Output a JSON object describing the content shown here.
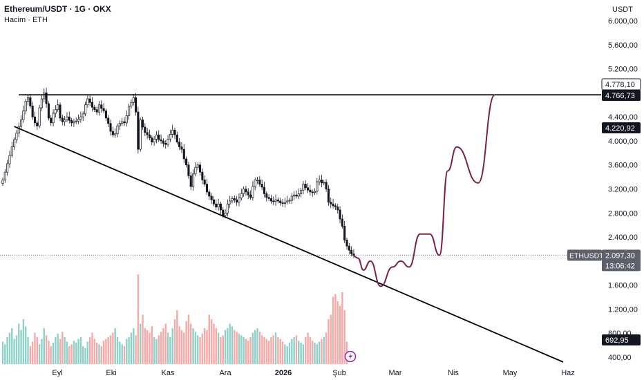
{
  "header": {
    "symbol_title": "Ethereum/USDT · 1G · OKX",
    "volume_label": "Hacim · ETH",
    "currency": "USDT"
  },
  "chart_data": {
    "type": "candlestick",
    "title": "Ethereum/USDT · 1G · OKX",
    "price_axis": {
      "ticks": [
        6000,
        5600,
        5200,
        4400,
        4000,
        3600,
        3200,
        2800,
        2400,
        1600,
        1200,
        800,
        400
      ],
      "tick_labels": [
        "6.000,00",
        "5.600,00",
        "5.200,00",
        "4.400,00",
        "4.000,00",
        "3.600,00",
        "3.200,00",
        "2.800,00",
        "2.400,00",
        "1.600,00",
        "1.200,00",
        "800,00",
        "400,00"
      ],
      "badges": [
        {
          "value": 4778.1,
          "label": "4.778,10",
          "style": "outline"
        },
        {
          "value": 4766.73,
          "label": "4.766,73",
          "style": "dark"
        },
        {
          "value": 4220.92,
          "label": "4.220,92",
          "style": "dark"
        },
        {
          "value": 2097.3,
          "label": "2.097,30",
          "style": "gray",
          "symbol": "ETHUSDT",
          "countdown": "13:06:42"
        },
        {
          "label": "692,95",
          "style": "dark",
          "pane": "volume"
        }
      ]
    },
    "time_axis": {
      "labels": [
        "Eyl",
        "Eki",
        "Kas",
        "Ara",
        "2026",
        "Şub",
        "Mar",
        "Nis",
        "May",
        "Haz"
      ],
      "bold": "2026"
    },
    "series_closes": [
      3350,
      3480,
      3620,
      3760,
      3900,
      4020,
      4130,
      4240,
      4350,
      4500,
      4660,
      4720,
      4580,
      4400,
      4300,
      4250,
      4550,
      4700,
      4800,
      4620,
      4380,
      4300,
      4460,
      4520,
      4600,
      4380,
      4320,
      4350,
      4400,
      4340,
      4300,
      4320,
      4330,
      4360,
      4400,
      4450,
      4600,
      4700,
      4640,
      4560,
      4520,
      4480,
      4600,
      4540,
      4500,
      4380,
      4290,
      4160,
      4100,
      4120,
      4250,
      4290,
      4320,
      4300,
      4420,
      4580,
      4640,
      4720,
      4480,
      3860,
      4350,
      4230,
      4140,
      4100,
      4050,
      3980,
      4030,
      4100,
      4020,
      4000,
      3960,
      3940,
      4030,
      4110,
      4180,
      4100,
      3980,
      3900,
      3860,
      3700,
      3600,
      3420,
      3240,
      3450,
      3560,
      3600,
      3480,
      3350,
      3280,
      3150,
      3080,
      3020,
      2950,
      2900,
      2950,
      2850,
      2760,
      2800,
      2950,
      3000,
      3040,
      3020,
      2980,
      3050,
      3120,
      3200,
      3150,
      3100,
      3060,
      3240,
      3350,
      3350,
      3280,
      3230,
      3120,
      3060,
      3040,
      3000,
      2990,
      3020,
      3000,
      2970,
      2960,
      2980,
      3000,
      3010,
      3080,
      3100,
      3080,
      3120,
      3180,
      3280,
      3220,
      3180,
      3150,
      3140,
      3160,
      3320,
      3350,
      3300,
      3310,
      3200,
      2980,
      2950,
      2920,
      2900,
      2850,
      2700,
      2580,
      2350,
      2250,
      2180,
      2120,
      2097
    ],
    "volume_heights": [
      0.25,
      0.22,
      0.3,
      0.35,
      0.4,
      0.28,
      0.32,
      0.45,
      0.38,
      0.5,
      0.42,
      0.3,
      0.2,
      0.25,
      0.35,
      0.3,
      0.22,
      0.28,
      0.4,
      0.32,
      0.26,
      0.2,
      0.24,
      0.3,
      0.34,
      0.28,
      0.36,
      0.3,
      0.25,
      0.2,
      0.22,
      0.26,
      0.24,
      0.28,
      0.3,
      0.2,
      0.18,
      0.25,
      0.3,
      0.35,
      0.28,
      0.24,
      0.22,
      0.2,
      0.26,
      0.28,
      0.3,
      0.32,
      0.35,
      0.4,
      0.3,
      0.25,
      0.22,
      0.2,
      0.28,
      0.3,
      0.35,
      0.4,
      0.32,
      1.0,
      0.45,
      0.55,
      0.4,
      0.38,
      0.35,
      0.42,
      0.3,
      0.28,
      0.32,
      0.36,
      0.4,
      0.45,
      0.35,
      0.3,
      0.4,
      0.5,
      0.6,
      0.42,
      0.38,
      0.35,
      0.48,
      0.55,
      0.45,
      0.4,
      0.36,
      0.32,
      0.3,
      0.34,
      0.4,
      0.38,
      0.55,
      0.5,
      0.45,
      0.4,
      0.35,
      0.3,
      0.32,
      0.38,
      0.4,
      0.45,
      0.42,
      0.38,
      0.36,
      0.34,
      0.32,
      0.3,
      0.28,
      0.26,
      0.3,
      0.35,
      0.38,
      0.4,
      0.36,
      0.32,
      0.3,
      0.28,
      0.26,
      0.3,
      0.32,
      0.35,
      0.3,
      0.28,
      0.25,
      0.22,
      0.2,
      0.24,
      0.28,
      0.3,
      0.32,
      0.26,
      0.24,
      0.22,
      0.3,
      0.35,
      0.3,
      0.26,
      0.24,
      0.22,
      0.25,
      0.28,
      0.3,
      0.35,
      0.5,
      0.55,
      0.75,
      0.78,
      0.7,
      0.65,
      0.8,
      0.6,
      0.25
    ],
    "trendlines": [
      {
        "name": "resistance",
        "from": {
          "time_index": 7,
          "price": 4766.73
        },
        "to": {
          "time_index": "right-edge",
          "price": 4766.73
        }
      },
      {
        "name": "support",
        "from": {
          "time_index": 5,
          "price": 4240
        },
        "to": {
          "time_index": "Haz",
          "price": 320
        }
      }
    ],
    "projection_path": [
      2097,
      2050,
      1850,
      2000,
      1580,
      1900,
      2000,
      1900,
      2450,
      2450,
      2097,
      3500,
      3900,
      3300,
      4766
    ]
  },
  "colors": {
    "up": "#26a69a",
    "down": "#ef5350",
    "up_vol": "#8fd1c9",
    "down_vol": "#f7a9a7",
    "projection": "#7b1f4a",
    "line": "#000000",
    "badge_dark": "#131722",
    "badge_gray": "#5d606b"
  },
  "icons": {
    "lightning": "lightning-icon"
  }
}
